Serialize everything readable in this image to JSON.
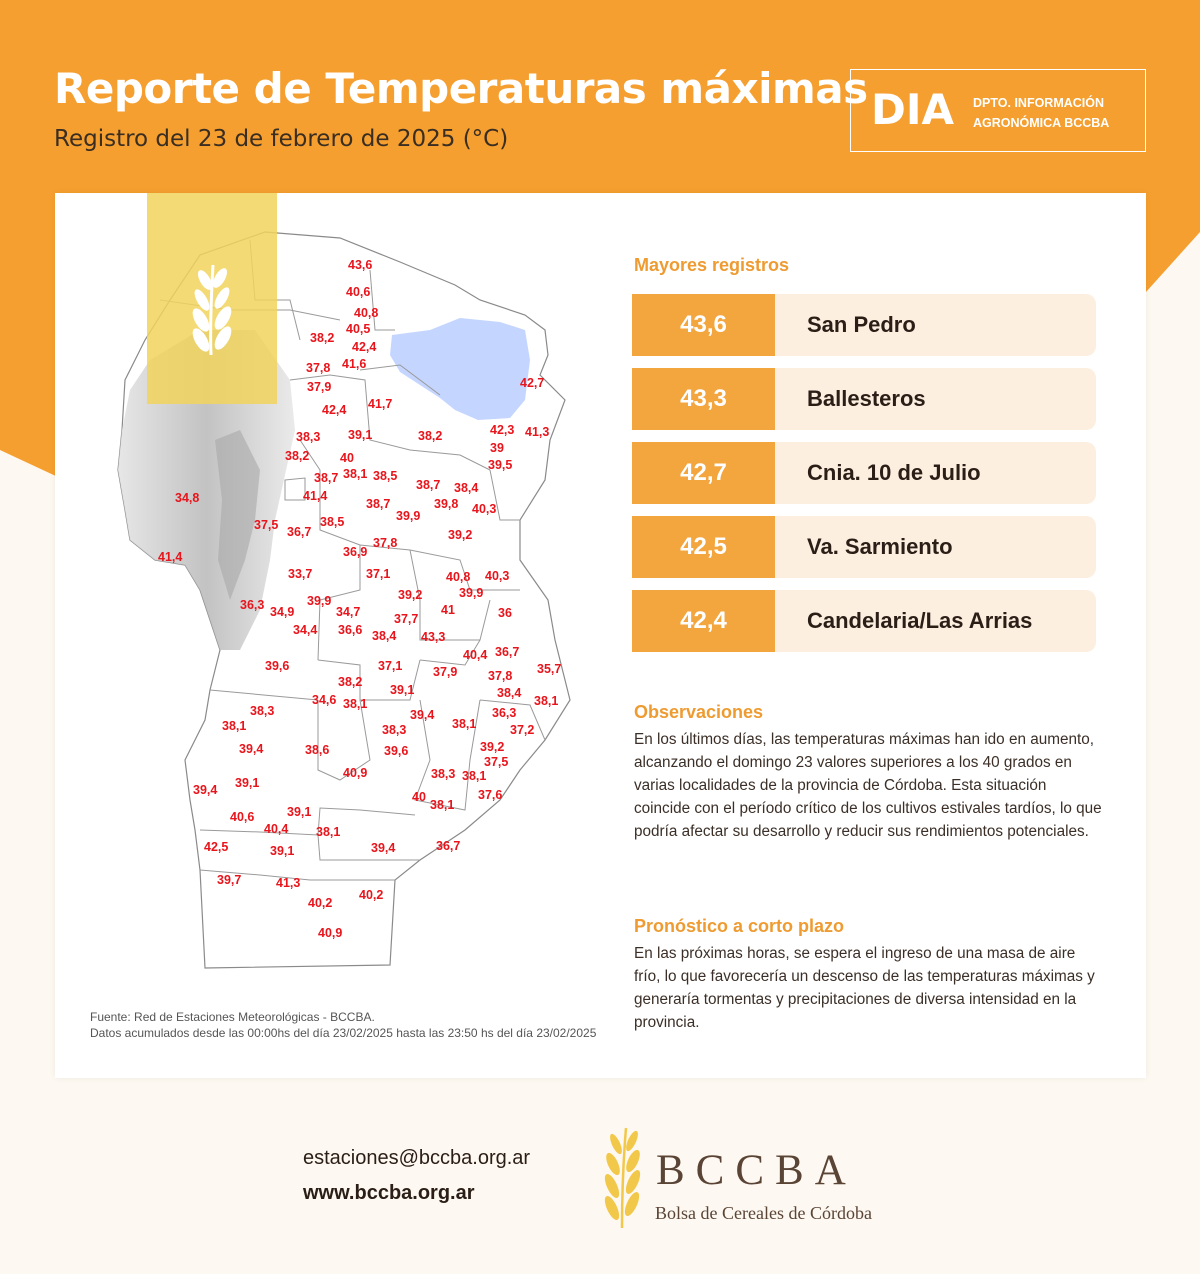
{
  "header": {
    "title": "Reporte de Temperaturas máximas",
    "subtitle": "Registro del 23 de febrero de 2025 (°C)",
    "badge_big": "DIA",
    "badge_small_1": "DPTO. INFORMACIÓN",
    "badge_small_2": "AGRONÓMICA BCCBA"
  },
  "colors": {
    "header_orange": "#f49f2f",
    "accent_orange": "#f3a53e",
    "section_title": "#ee9b31",
    "map_label_red": "#e8141b",
    "lake_blue": "#c4d5ff",
    "wheat_tile": "#f2d45c"
  },
  "map": {
    "icons": [
      "wheat-icon"
    ],
    "station_values": [
      "43,6",
      "40,6",
      "40,8",
      "40,5",
      "38,2",
      "42,4",
      "41,6",
      "37,8",
      "37,9",
      "42,7",
      "42,4",
      "41,7",
      "38,3",
      "39,1",
      "38,2",
      "42,3",
      "41,3",
      "39",
      "38,2",
      "40",
      "39,5",
      "38,7",
      "38,1",
      "38,5",
      "38,7",
      "38,4",
      "34,8",
      "41,4",
      "38,7",
      "40,3",
      "39,9",
      "37,5",
      "38,5",
      "39,8",
      "36,7",
      "39,2",
      "41,4",
      "37,8",
      "36,9",
      "33,7",
      "37,1",
      "40,8",
      "40,3",
      "39,2",
      "39,9",
      "36,3",
      "34,9",
      "39,9",
      "34,7",
      "41",
      "36",
      "37,7",
      "34,4",
      "36,6",
      "38,4",
      "43,3",
      "40,4",
      "36,7",
      "35,7",
      "39,6",
      "37,1",
      "37,9",
      "37,8",
      "38,2",
      "39,1",
      "38,4",
      "34,6",
      "38,1",
      "38,1",
      "38,3",
      "39,4",
      "36,3",
      "38,1",
      "38,1",
      "38,3",
      "37,2",
      "39,4",
      "38,6",
      "39,6",
      "39,2",
      "37,5",
      "40,9",
      "38,3",
      "39,1",
      "39,4",
      "38,1",
      "40",
      "38,1",
      "37,6",
      "40,6",
      "39,1",
      "40,4",
      "38,1",
      "42,5",
      "39,1",
      "39,4",
      "36,7",
      "39,7",
      "41,3",
      "40,2",
      "40,2",
      "40,9"
    ]
  },
  "source": {
    "line1": "Fuente: Red de Estaciones Meteorológicas - BCCBA.",
    "line2": "Datos acumulados desde las 00:00hs del día 23/02/2025 hasta las 23:50 hs del día 23/02/2025"
  },
  "ranking": {
    "title": "Mayores registros",
    "rows": [
      {
        "value": "43,6",
        "name": "San Pedro"
      },
      {
        "value": "43,3",
        "name": "Ballesteros"
      },
      {
        "value": "42,7",
        "name": "Cnia. 10 de Julio"
      },
      {
        "value": "42,5",
        "name": "Va. Sarmiento"
      },
      {
        "value": "42,4",
        "name": "Candelaria/Las Arrias"
      }
    ]
  },
  "observaciones": {
    "title": "Observaciones",
    "text": "En los últimos días, las temperaturas máximas han ido en aumento, alcanzando el domingo 23 valores superiores a los 40 grados en varias localidades de la provincia de Córdoba. Esta situación coincide con el período crítico de los cultivos estivales tardíos, lo que podría afectar su desarrollo y reducir sus rendimientos potenciales."
  },
  "pronostico": {
    "title": "Pronóstico a corto plazo",
    "text": "En las próximas horas, se espera el ingreso de una masa de aire frío, lo que favorecería un descenso de las temperaturas máximas y generaría tormentas y precipitaciones de diversa intensidad en la provincia."
  },
  "footer": {
    "email": "estaciones@bccba.org.ar",
    "website": "www.bccba.org.ar",
    "logo_name": "BCCBA",
    "logo_sub": "Bolsa de Cereales de Córdoba",
    "icons": [
      "wheat-logo-icon"
    ]
  }
}
